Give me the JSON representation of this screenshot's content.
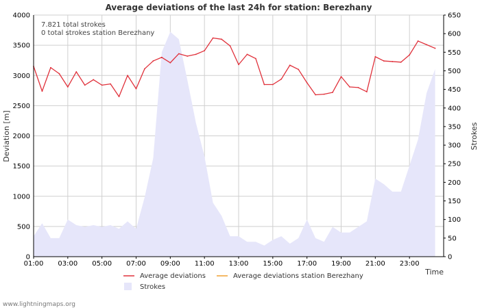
{
  "chart_data": {
    "type": "line",
    "title": "Average deviations of the last 24h for station: Berezhany",
    "ylabel": "Deviation  [m]",
    "y2label": "Strokes",
    "xlabel": "Time",
    "ylim": [
      0,
      4000
    ],
    "y2lim": [
      0,
      650
    ],
    "xlim": [
      1,
      25
    ],
    "yticks": [
      0,
      500,
      1000,
      1500,
      2000,
      2500,
      3000,
      3500,
      4000
    ],
    "y2ticks": [
      0,
      50,
      100,
      150,
      200,
      250,
      300,
      350,
      400,
      450,
      500,
      550,
      600,
      650
    ],
    "xticks": [
      {
        "value": 1,
        "label": "01:00"
      },
      {
        "value": 3,
        "label": "03:00"
      },
      {
        "value": 5,
        "label": "05:00"
      },
      {
        "value": 7,
        "label": "07:00"
      },
      {
        "value": 9,
        "label": "09:00"
      },
      {
        "value": 11,
        "label": "11:00"
      },
      {
        "value": 13,
        "label": "13:00"
      },
      {
        "value": 15,
        "label": "15:00"
      },
      {
        "value": 17,
        "label": "17:00"
      },
      {
        "value": 19,
        "label": "19:00"
      },
      {
        "value": 21,
        "label": "21:00"
      },
      {
        "value": 23,
        "label": "23:00"
      }
    ],
    "info_lines": [
      "7.821 total strokes",
      "0 total strokes station Berezhany"
    ],
    "legend": {
      "avg": "Average deviations",
      "station": "Average deviations station Berezhany",
      "strokes": "Strokes"
    },
    "colors": {
      "avg": "#e0303a",
      "station": "#f0a030",
      "strokes_fill": "#e6e6fa",
      "grid": "#cfcfcf"
    },
    "series": [
      {
        "name": "Average deviations",
        "axis": "left",
        "x": [
          1,
          1.5,
          2,
          2.5,
          3,
          3.5,
          4,
          4.5,
          5,
          5.5,
          6,
          6.5,
          7,
          7.5,
          8,
          8.5,
          9,
          9.5,
          10,
          10.5,
          11,
          11.5,
          12,
          12.5,
          13,
          13.5,
          14,
          14.5,
          15,
          15.5,
          16,
          16.5,
          17,
          17.5,
          18,
          18.5,
          19,
          19.5,
          20,
          20.5,
          21,
          21.5,
          22,
          22.5,
          23,
          23.5,
          24,
          24.5
        ],
        "values": [
          3150,
          2740,
          3130,
          3030,
          2810,
          3060,
          2840,
          2930,
          2840,
          2860,
          2650,
          3000,
          2780,
          3110,
          3240,
          3300,
          3210,
          3360,
          3320,
          3350,
          3410,
          3620,
          3600,
          3490,
          3180,
          3350,
          3280,
          2850,
          2850,
          2940,
          3170,
          3100,
          2880,
          2680,
          2690,
          2720,
          2980,
          2810,
          2800,
          2730,
          3310,
          3240,
          3230,
          3220,
          3340,
          3570,
          3510,
          3450
        ]
      },
      {
        "name": "Strokes",
        "axis": "right",
        "x": [
          1,
          1.5,
          2,
          2.5,
          3,
          3.5,
          4,
          4.5,
          5,
          5.5,
          6,
          6.5,
          7,
          7.5,
          8,
          8.5,
          9,
          9.5,
          10,
          10.5,
          11,
          11.5,
          12,
          12.5,
          13,
          13.5,
          14,
          14.5,
          15,
          15.5,
          16,
          16.5,
          17,
          17.5,
          18,
          18.5,
          19,
          19.5,
          20,
          20.5,
          21,
          21.5,
          22,
          22.5,
          23,
          23.5,
          24,
          24.5
        ],
        "values": [
          55,
          90,
          50,
          50,
          100,
          85,
          80,
          85,
          80,
          85,
          75,
          95,
          75,
          160,
          265,
          550,
          605,
          585,
          475,
          360,
          270,
          145,
          110,
          55,
          55,
          40,
          40,
          30,
          45,
          55,
          35,
          50,
          100,
          50,
          40,
          80,
          65,
          65,
          80,
          95,
          210,
          195,
          175,
          175,
          245,
          315,
          440,
          505
        ]
      }
    ],
    "footer": "www.lightningmaps.org"
  }
}
